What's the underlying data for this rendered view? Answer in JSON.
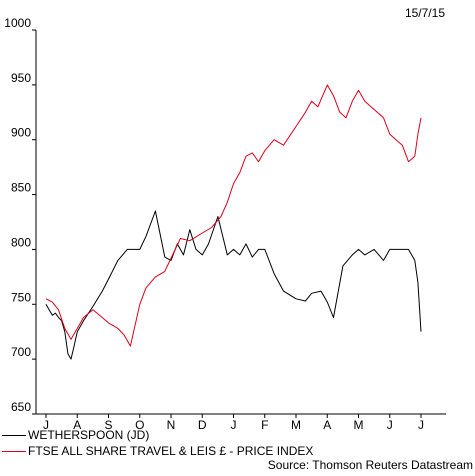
{
  "date": "15/7/15",
  "source": "Source: Thomson Reuters Datastream",
  "chart_data": {
    "type": "line",
    "y_ticks": [
      650,
      700,
      750,
      800,
      850,
      900,
      950,
      1000
    ],
    "ylim": [
      650,
      1000
    ],
    "x_ticks": [
      "J",
      "A",
      "S",
      "O",
      "N",
      "D",
      "J",
      "F",
      "M",
      "A",
      "M",
      "J",
      "J"
    ],
    "grid": false,
    "legend_position": "bottom",
    "series": [
      {
        "name": "WETHERSPOON (JD)",
        "color": "#000000",
        "x": [
          0,
          0.1,
          0.2,
          0.3,
          0.4,
          0.5,
          0.6,
          0.7,
          0.8,
          0.9,
          1,
          1.2,
          1.5,
          1.8,
          2,
          2.3,
          2.6,
          3,
          3.2,
          3.5,
          3.8,
          4,
          4.2,
          4.4,
          4.6,
          4.8,
          5,
          5.2,
          5.5,
          5.8,
          6,
          6.2,
          6.4,
          6.6,
          6.8,
          7,
          7.3,
          7.6,
          8,
          8.3,
          8.5,
          8.8,
          9,
          9.2,
          9.5,
          9.8,
          10,
          10.2,
          10.5,
          10.8,
          11,
          11.3,
          11.6,
          11.8,
          11.9,
          12
        ],
        "values": [
          750,
          745,
          740,
          742,
          738,
          735,
          725,
          705,
          700,
          712,
          725,
          735,
          748,
          762,
          773,
          790,
          800,
          800,
          812,
          835,
          793,
          790,
          805,
          795,
          818,
          800,
          795,
          805,
          830,
          795,
          800,
          795,
          805,
          793,
          800,
          800,
          778,
          762,
          755,
          753,
          760,
          762,
          752,
          738,
          785,
          795,
          800,
          795,
          800,
          790,
          800,
          800,
          800,
          790,
          770,
          725
        ]
      },
      {
        "name": "FTSE ALL SHARE TRAVEL & LEIS £ - PRICE INDEX",
        "color": "#e0001a",
        "x": [
          0,
          0.2,
          0.4,
          0.6,
          0.8,
          1,
          1.2,
          1.5,
          1.8,
          2,
          2.3,
          2.5,
          2.7,
          3,
          3.2,
          3.5,
          3.8,
          4,
          4.3,
          4.6,
          5,
          5.3,
          5.6,
          5.8,
          6,
          6.2,
          6.4,
          6.6,
          6.8,
          7,
          7.3,
          7.6,
          8,
          8.3,
          8.5,
          8.7,
          9,
          9.2,
          9.4,
          9.6,
          9.8,
          10,
          10.2,
          10.4,
          10.6,
          10.8,
          11,
          11.2,
          11.4,
          11.6,
          11.8,
          11.9,
          12
        ],
        "values": [
          755,
          752,
          745,
          728,
          718,
          728,
          738,
          745,
          738,
          733,
          728,
          722,
          712,
          750,
          765,
          775,
          780,
          792,
          810,
          808,
          815,
          820,
          830,
          843,
          860,
          870,
          885,
          888,
          880,
          890,
          900,
          895,
          912,
          925,
          935,
          930,
          950,
          940,
          925,
          920,
          935,
          945,
          935,
          930,
          925,
          920,
          905,
          900,
          895,
          880,
          885,
          905,
          920
        ]
      }
    ]
  }
}
